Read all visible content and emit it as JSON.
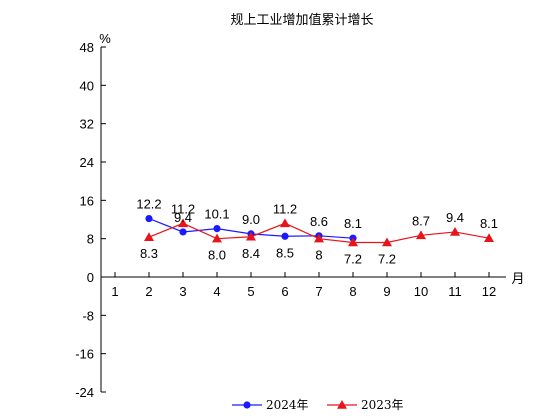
{
  "chart_data": {
    "type": "line",
    "title": "规上工业增加值累计增长",
    "ylabel": "%",
    "xlabel": "月",
    "ylim": [
      -24,
      48
    ],
    "yticks": [
      -24,
      -16,
      -8,
      0,
      8,
      16,
      24,
      32,
      40,
      48
    ],
    "categories": [
      "1",
      "2",
      "3",
      "4",
      "5",
      "6",
      "7",
      "8",
      "9",
      "10",
      "11",
      "12"
    ],
    "grid": false,
    "legend_position": "bottom",
    "series": [
      {
        "name": "2024年",
        "color": "#1a1aff",
        "marker": "circle",
        "x": [
          2,
          3,
          4,
          5,
          6,
          7,
          8
        ],
        "values": [
          12.2,
          9.4,
          10.1,
          9.0,
          8.5,
          8.6,
          8.1
        ],
        "labels": [
          "12.2",
          "9.4",
          "10.1",
          "9.0",
          "8.5",
          "8.6",
          "8.1"
        ]
      },
      {
        "name": "2023年",
        "color": "#e8141c",
        "marker": "triangle",
        "x": [
          2,
          3,
          4,
          5,
          6,
          7,
          8,
          9,
          10,
          11,
          12
        ],
        "values": [
          8.3,
          11.2,
          8.0,
          8.4,
          11.2,
          8.0,
          7.2,
          7.2,
          8.7,
          9.4,
          8.1
        ],
        "labels": [
          "8.3",
          "11.2",
          "8.0",
          "8.4",
          "11.2",
          "8",
          "7.2",
          "7.2",
          "8.7",
          "9.4",
          "8.1"
        ]
      }
    ]
  }
}
